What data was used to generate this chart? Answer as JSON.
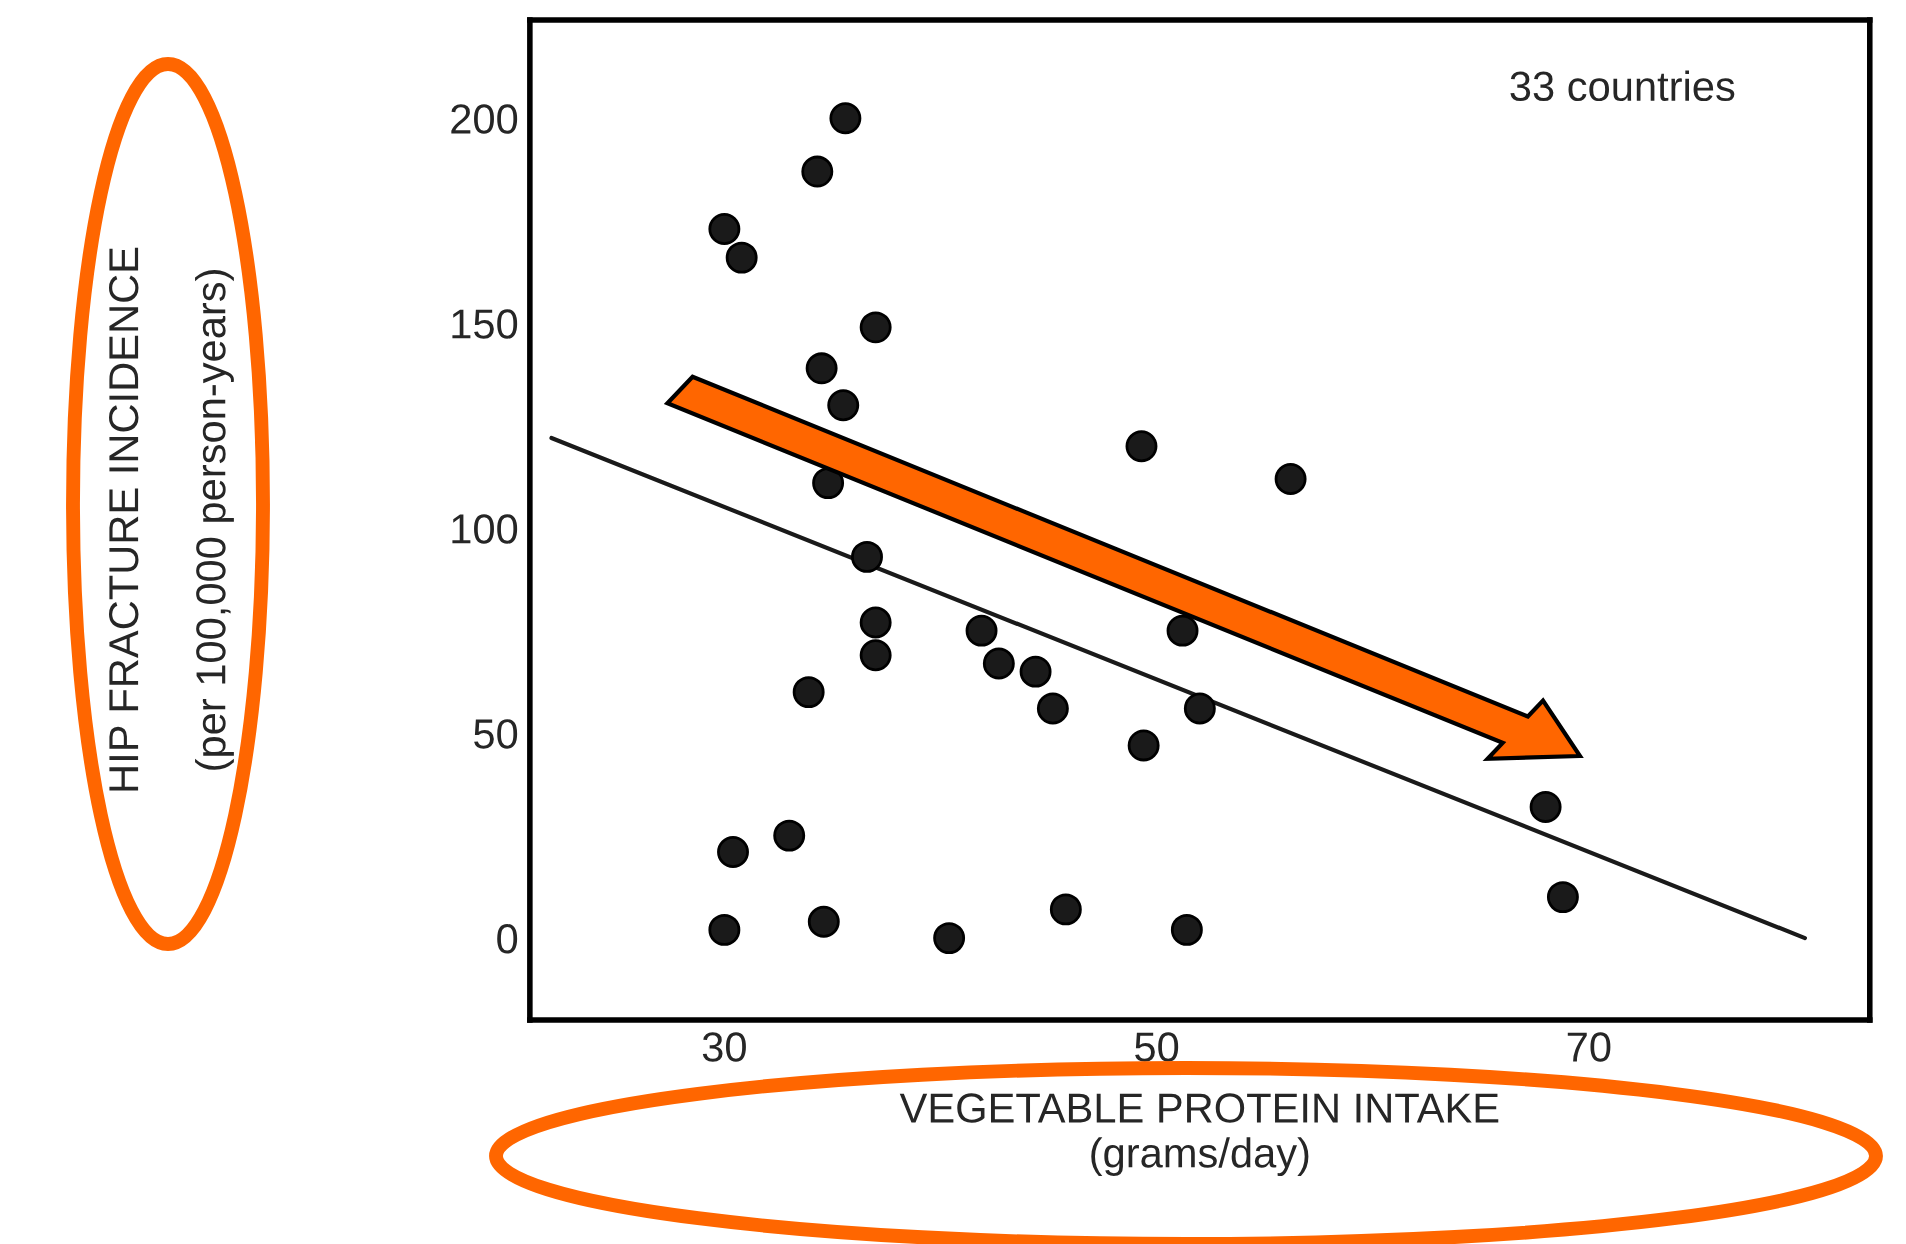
{
  "chart_data": {
    "type": "scatter",
    "xlabel": "VEGETABLE PROTEIN INTAKE\n(grams/day)",
    "ylabel": "HIP FRACTURE INCIDENCE\n(per 100,000 person-years)",
    "annotations": [
      "33 countries"
    ],
    "xlim": [
      21,
      83
    ],
    "ylim": [
      -20,
      224
    ],
    "xticks": [
      30,
      50,
      70
    ],
    "yticks": [
      0,
      50,
      100,
      150,
      200
    ],
    "grid": false,
    "legend": false,
    "marker": "circle",
    "series": [
      {
        "color": "#1a1a1a",
        "x": [
          35.6,
          34.3,
          30.0,
          30.8,
          37.0,
          34.5,
          35.5,
          49.3,
          56.2,
          34.8,
          36.6,
          37.0,
          37.0,
          41.9,
          42.7,
          44.4,
          45.2,
          33.9,
          51.2,
          49.4,
          52.0,
          33.0,
          30.4,
          30.0,
          34.6,
          40.4,
          45.8,
          51.4,
          68.0,
          68.8
        ],
        "values": [
          200,
          187,
          173,
          166,
          149,
          139,
          130,
          120,
          112,
          111,
          93,
          77,
          69,
          75,
          67,
          65,
          56,
          60,
          75,
          47,
          56,
          25,
          21,
          2,
          4,
          0,
          7,
          2,
          32,
          10
        ]
      },
      {
        "type": "line",
        "color": "#1a1a1a",
        "x": [
          22,
          80
        ],
        "values": [
          122,
          0
        ],
        "marker": "none",
        "line_style": "solid"
      }
    ]
  }
}
